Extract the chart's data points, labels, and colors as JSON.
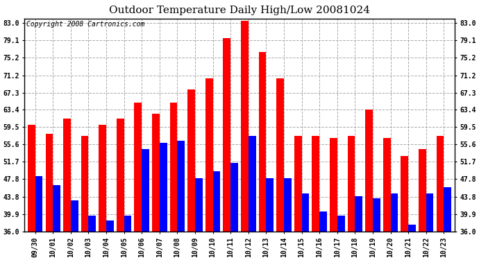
{
  "title": "Outdoor Temperature Daily High/Low 20081024",
  "copyright": "Copyright 2008 Cartronics.com",
  "categories": [
    "09/30",
    "10/01",
    "10/02",
    "10/03",
    "10/04",
    "10/05",
    "10/06",
    "10/07",
    "10/08",
    "10/09",
    "10/10",
    "10/11",
    "10/12",
    "10/13",
    "10/14",
    "10/15",
    "10/16",
    "10/17",
    "10/18",
    "10/19",
    "10/20",
    "10/21",
    "10/22",
    "10/23"
  ],
  "highs": [
    60.0,
    58.0,
    61.5,
    57.5,
    60.0,
    61.5,
    65.0,
    62.5,
    65.0,
    68.0,
    70.5,
    79.5,
    83.5,
    76.5,
    70.5,
    57.5,
    57.5,
    57.0,
    57.5,
    63.5,
    57.0,
    53.0,
    54.5,
    57.5
  ],
  "lows": [
    48.5,
    46.5,
    43.0,
    39.5,
    38.5,
    39.5,
    54.5,
    56.0,
    56.5,
    48.0,
    49.5,
    51.5,
    57.5,
    48.0,
    48.0,
    44.5,
    40.5,
    39.5,
    44.0,
    43.5,
    44.5,
    37.5,
    44.5,
    46.0
  ],
  "high_color": "#ff0000",
  "low_color": "#0000ff",
  "bg_color": "#ffffff",
  "grid_color": "#aaaaaa",
  "yticks": [
    36.0,
    39.9,
    43.8,
    47.8,
    51.7,
    55.6,
    59.5,
    63.4,
    67.3,
    71.2,
    75.2,
    79.1,
    83.0
  ],
  "ymin": 36.0,
  "ymax": 84.0,
  "title_fontsize": 11,
  "copyright_fontsize": 7,
  "tick_fontsize": 7,
  "bar_width": 0.42
}
